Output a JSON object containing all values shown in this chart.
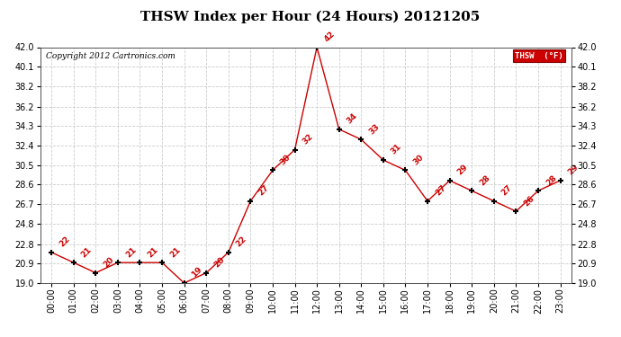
{
  "title": "THSW Index per Hour (24 Hours) 20121205",
  "copyright": "Copyright 2012 Cartronics.com",
  "legend_label": "THSW  (°F)",
  "hours": [
    0,
    1,
    2,
    3,
    4,
    5,
    6,
    7,
    8,
    9,
    10,
    11,
    12,
    13,
    14,
    15,
    16,
    17,
    18,
    19,
    20,
    21,
    22,
    23
  ],
  "values": [
    22,
    21,
    20,
    21,
    21,
    21,
    19,
    20,
    22,
    27,
    30,
    32,
    42,
    34,
    33,
    31,
    30,
    27,
    29,
    28,
    27,
    26,
    28,
    29
  ],
  "ylim": [
    19.0,
    42.0
  ],
  "yticks": [
    19.0,
    20.9,
    22.8,
    24.8,
    26.7,
    28.6,
    30.5,
    32.4,
    34.3,
    36.2,
    38.2,
    40.1,
    42.0
  ],
  "line_color": "#cc0000",
  "marker_color": "#000000",
  "bg_color": "#ffffff",
  "grid_color": "#cccccc",
  "title_fontsize": 11,
  "label_fontsize": 7,
  "annotation_fontsize": 6.5,
  "legend_bg": "#cc0000",
  "legend_text_color": "#ffffff",
  "copyright_fontsize": 6.5
}
